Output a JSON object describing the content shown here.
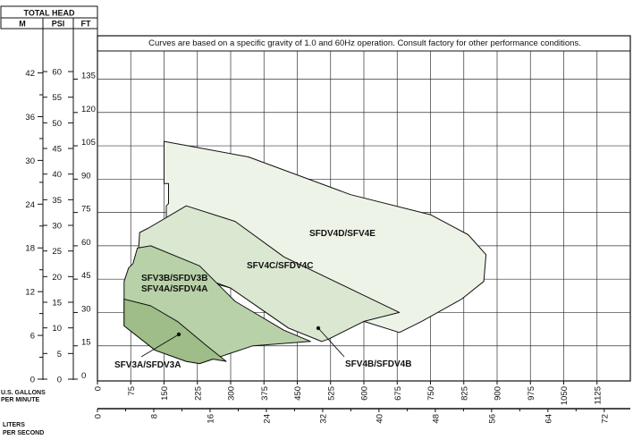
{
  "header": {
    "total_head": "TOTAL HEAD",
    "col_m": "M",
    "col_psi": "PSI",
    "col_ft": "FT",
    "note": "Curves are based on a specific gravity of 1.0 and 60Hz operation. Consult factory for other performance conditions."
  },
  "axes": {
    "gpm_label_1": "U.S. GALLONS",
    "gpm_label_2": "PER MINUTE",
    "lps_label_1": "LITERS",
    "lps_label_2": "PER SECOND"
  },
  "chart_data": {
    "type": "area",
    "title": "",
    "xlabel": "U.S. GALLONS PER MINUTE",
    "x2label": "LITERS PER SECOND",
    "ylabel": "TOTAL HEAD",
    "xlim": [
      0,
      1200
    ],
    "ylim": [
      0,
      150
    ],
    "grid": true,
    "gpm_ticks": [
      0,
      75,
      150,
      225,
      300,
      375,
      450,
      525,
      600,
      675,
      750,
      825,
      900,
      975,
      1050,
      1125
    ],
    "lps_ticks": [
      0,
      8,
      16,
      24,
      32,
      40,
      48,
      56,
      64,
      72
    ],
    "ft_ticks": [
      0,
      15,
      30,
      45,
      60,
      75,
      90,
      105,
      120,
      135
    ],
    "psi_ticks": [
      0,
      5,
      10,
      15,
      20,
      25,
      30,
      35,
      40,
      45,
      50,
      55,
      60
    ],
    "m_ticks": [
      0,
      6,
      12,
      18,
      24,
      30,
      36,
      42
    ],
    "series": [
      {
        "name": "SFDV4D/SFV4E",
        "color": "#eef3e8",
        "points": [
          [
            150,
            107
          ],
          [
            340,
            100
          ],
          [
            570,
            83
          ],
          [
            750,
            74
          ],
          [
            835,
            65
          ],
          [
            875,
            56
          ],
          [
            870,
            44
          ],
          [
            820,
            36
          ],
          [
            730,
            26
          ],
          [
            680,
            21
          ],
          [
            600,
            26
          ],
          [
            515,
            18
          ],
          [
            505,
            17
          ],
          [
            430,
            23
          ],
          [
            300,
            41
          ],
          [
            155,
            49
          ],
          [
            150,
            52
          ],
          [
            155,
            53
          ],
          [
            155,
            78
          ],
          [
            160,
            79
          ],
          [
            160,
            88
          ],
          [
            150,
            88
          ]
        ]
      },
      {
        "name": "SFV4C/SFDV4C",
        "color": "#dbe8d1",
        "points": [
          [
            95,
            66
          ],
          [
            115,
            68
          ],
          [
            200,
            78
          ],
          [
            310,
            71
          ],
          [
            420,
            55
          ],
          [
            680,
            30
          ],
          [
            600,
            26
          ],
          [
            520,
            18
          ],
          [
            505,
            17
          ],
          [
            430,
            23
          ],
          [
            300,
            41
          ],
          [
            150,
            52
          ],
          [
            90,
            50
          ]
        ]
      },
      {
        "name": "SFV3B/SFDV3B SFV4A/SFDV4A",
        "color": "#b9d1a8",
        "points": [
          [
            60,
            44
          ],
          [
            70,
            50
          ],
          [
            80,
            52
          ],
          [
            90,
            59
          ],
          [
            120,
            60
          ],
          [
            230,
            51
          ],
          [
            310,
            35
          ],
          [
            420,
            22
          ],
          [
            480,
            17
          ],
          [
            350,
            15
          ],
          [
            260,
            9
          ],
          [
            230,
            7
          ],
          [
            200,
            8
          ],
          [
            130,
            13
          ],
          [
            60,
            24
          ]
        ]
      },
      {
        "name": "SFV3A/SFDV3A",
        "color": "#9ebd88",
        "points": [
          [
            60,
            36
          ],
          [
            120,
            33
          ],
          [
            180,
            26
          ],
          [
            240,
            16
          ],
          [
            290,
            8
          ],
          [
            260,
            9
          ],
          [
            230,
            7
          ],
          [
            200,
            8
          ],
          [
            130,
            13
          ],
          [
            60,
            24
          ]
        ]
      }
    ],
    "annotations": [
      "SFDV4D/SFV4E",
      "SFV4C/SFDV4C",
      "SFV3B/SFDV3B",
      "SFV4A/SFDV4A",
      "SFV3A/SFDV3A",
      "SFV4B/SFDV4B"
    ]
  }
}
